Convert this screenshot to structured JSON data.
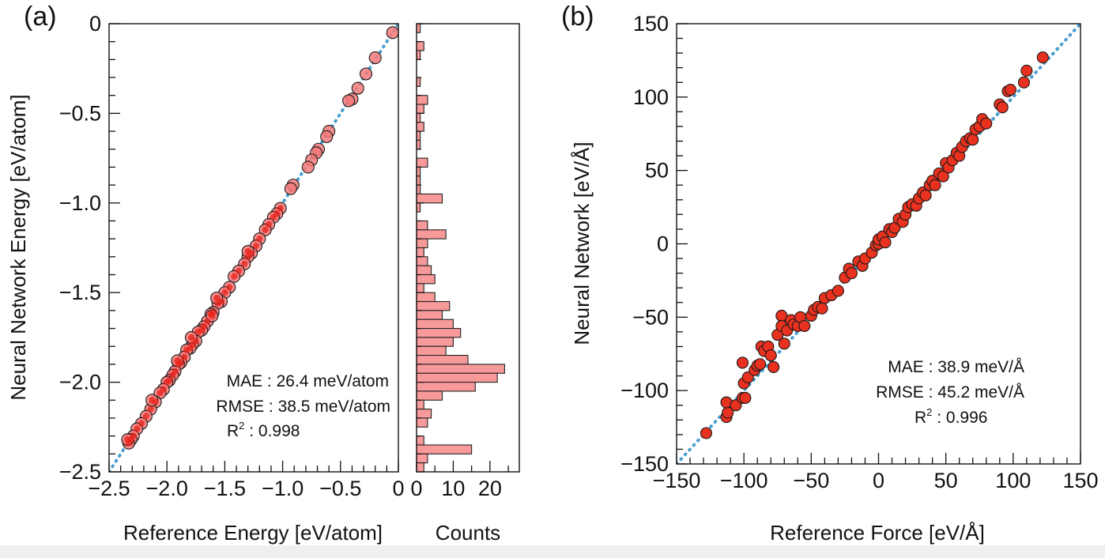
{
  "colors": {
    "marker_a": "#f47a7a",
    "marker_b": "#e8311f",
    "marker_core": "#e8221a",
    "hist_fill": "#f99a9a",
    "diagonal": "#4a9fd0",
    "axis": "#111111"
  },
  "chart_data": [
    {
      "type": "scatter",
      "panel": "(a)",
      "xlabel": "Reference Energy [eV/atom]",
      "ylabel": "Neural Network Energy [eV/atom]",
      "xlim": [
        -2.5,
        0
      ],
      "ylim": [
        -2.5,
        0
      ],
      "xticks": [
        -2.5,
        -2.0,
        -1.5,
        -1.0,
        -0.5,
        0
      ],
      "xtick_labels": [
        "−2.5",
        "−2.0",
        "−1.5",
        "−1.0",
        "−0.5",
        "0"
      ],
      "yticks": [
        0,
        -0.5,
        -1.0,
        -1.5,
        -2.0,
        -2.5
      ],
      "ytick_labels": [
        "0",
        "−0.5",
        "−1.0",
        "−1.5",
        "−2.0",
        "−2.5"
      ],
      "stats": {
        "mae": "MAE : 26.4 meV/atom",
        "rmse": "RMSE : 38.5 meV/atom",
        "r2_label": "R",
        "r2_sup": "2",
        "r2_value": " : 0.998"
      },
      "points": [
        [
          -0.05,
          -0.05
        ],
        [
          -0.2,
          -0.19
        ],
        [
          -0.28,
          -0.28
        ],
        [
          -0.35,
          -0.36
        ],
        [
          -0.4,
          -0.42
        ],
        [
          -0.43,
          -0.43
        ],
        [
          -0.6,
          -0.6
        ],
        [
          -0.62,
          -0.63
        ],
        [
          -0.69,
          -0.7
        ],
        [
          -0.71,
          -0.72
        ],
        [
          -0.75,
          -0.76
        ],
        [
          -0.78,
          -0.8
        ],
        [
          -0.91,
          -0.9
        ],
        [
          -0.93,
          -0.92
        ],
        [
          -1.02,
          -1.03
        ],
        [
          -1.05,
          -1.06
        ],
        [
          -1.08,
          -1.08
        ],
        [
          -1.12,
          -1.12
        ],
        [
          -1.15,
          -1.15
        ],
        [
          -1.2,
          -1.2
        ],
        [
          -1.23,
          -1.24
        ],
        [
          -1.27,
          -1.28
        ],
        [
          -1.3,
          -1.3
        ],
        [
          -1.33,
          -1.34
        ],
        [
          -1.38,
          -1.38
        ],
        [
          -1.42,
          -1.41
        ],
        [
          -1.46,
          -1.47
        ],
        [
          -1.5,
          -1.5
        ],
        [
          -1.53,
          -1.55
        ],
        [
          -1.56,
          -1.56
        ],
        [
          -1.6,
          -1.61
        ],
        [
          -1.62,
          -1.62
        ],
        [
          -1.65,
          -1.66
        ],
        [
          -1.68,
          -1.69
        ],
        [
          -1.7,
          -1.71
        ],
        [
          -1.73,
          -1.72
        ],
        [
          -1.75,
          -1.77
        ],
        [
          -1.78,
          -1.79
        ],
        [
          -1.8,
          -1.81
        ],
        [
          -1.83,
          -1.82
        ],
        [
          -1.85,
          -1.86
        ],
        [
          -1.88,
          -1.89
        ],
        [
          -1.9,
          -1.9
        ],
        [
          -1.93,
          -1.94
        ],
        [
          -1.95,
          -1.96
        ],
        [
          -1.98,
          -1.99
        ],
        [
          -2.0,
          -2.0
        ],
        [
          -2.03,
          -2.04
        ],
        [
          -2.06,
          -2.06
        ],
        [
          -2.1,
          -2.11
        ],
        [
          -2.14,
          -2.15
        ],
        [
          -2.18,
          -2.19
        ],
        [
          -2.22,
          -2.23
        ],
        [
          -2.26,
          -2.26
        ],
        [
          -2.29,
          -2.3
        ],
        [
          -2.31,
          -2.32
        ],
        [
          -2.33,
          -2.34
        ],
        [
          -2.34,
          -2.32
        ],
        [
          -1.57,
          -1.53
        ],
        [
          -1.3,
          -1.27
        ],
        [
          -1.79,
          -1.75
        ],
        [
          -1.61,
          -1.63
        ],
        [
          -2.13,
          -2.1
        ],
        [
          -1.91,
          -1.88
        ]
      ]
    },
    {
      "type": "bar",
      "orientation": "horizontal",
      "xlabel": "Counts",
      "xlim": [
        0,
        28
      ],
      "xticks": [
        0,
        10,
        20
      ],
      "xtick_labels": [
        "0",
        "10",
        "20"
      ],
      "ylim": [
        -2.5,
        0
      ],
      "bins": [
        [
          -0.05,
          1
        ],
        [
          -0.15,
          2
        ],
        [
          -0.2,
          1
        ],
        [
          -0.35,
          1
        ],
        [
          -0.45,
          3
        ],
        [
          -0.5,
          2
        ],
        [
          -0.55,
          1
        ],
        [
          -0.6,
          2
        ],
        [
          -0.65,
          1
        ],
        [
          -0.7,
          1
        ],
        [
          -0.8,
          3
        ],
        [
          -0.85,
          1
        ],
        [
          -0.9,
          1
        ],
        [
          -0.95,
          1
        ],
        [
          -1.0,
          7
        ],
        [
          -1.05,
          1
        ],
        [
          -1.15,
          3
        ],
        [
          -1.2,
          8
        ],
        [
          -1.25,
          3
        ],
        [
          -1.3,
          2
        ],
        [
          -1.35,
          3
        ],
        [
          -1.4,
          4
        ],
        [
          -1.45,
          5
        ],
        [
          -1.5,
          2
        ],
        [
          -1.55,
          5
        ],
        [
          -1.6,
          9
        ],
        [
          -1.65,
          7
        ],
        [
          -1.7,
          10
        ],
        [
          -1.75,
          12
        ],
        [
          -1.8,
          10
        ],
        [
          -1.85,
          8
        ],
        [
          -1.9,
          14
        ],
        [
          -1.95,
          24
        ],
        [
          -2.0,
          22
        ],
        [
          -2.05,
          16
        ],
        [
          -2.1,
          7
        ],
        [
          -2.15,
          2
        ],
        [
          -2.2,
          4
        ],
        [
          -2.25,
          3
        ],
        [
          -2.35,
          2
        ],
        [
          -2.4,
          15
        ],
        [
          -2.45,
          3
        ],
        [
          -2.5,
          2
        ]
      ]
    },
    {
      "type": "scatter",
      "panel": "(b)",
      "xlabel": "Reference Force [eV/Å]",
      "ylabel": "Neural Network [eV/Å]",
      "xlim": [
        -150,
        150
      ],
      "ylim": [
        -150,
        150
      ],
      "xticks": [
        -150,
        -100,
        -50,
        0,
        50,
        100,
        150
      ],
      "xtick_labels": [
        "−150",
        "−100",
        "−50",
        "0",
        "50",
        "100",
        "150"
      ],
      "yticks": [
        150,
        100,
        50,
        0,
        -50,
        -100,
        -150
      ],
      "ytick_labels": [
        "150",
        "100",
        "50",
        "0",
        "−50",
        "−100",
        "−150"
      ],
      "stats": {
        "mae": "MAE : 38.9 meV/Å",
        "rmse": "RMSE : 45.2 meV/Å",
        "r2_label": "R",
        "r2_sup": "2",
        "r2_value": " : 0.996"
      },
      "points": [
        [
          -128,
          -129
        ],
        [
          -113,
          -118
        ],
        [
          -112,
          -115
        ],
        [
          -113,
          -108
        ],
        [
          -106,
          -110
        ],
        [
          -101,
          -105
        ],
        [
          -99,
          -105
        ],
        [
          -100,
          -95
        ],
        [
          -101,
          -81
        ],
        [
          -97,
          -91
        ],
        [
          -92,
          -86
        ],
        [
          -90,
          -83
        ],
        [
          -88,
          -82
        ],
        [
          -87,
          -70
        ],
        [
          -85,
          -73
        ],
        [
          -82,
          -70
        ],
        [
          -80,
          -76
        ],
        [
          -78,
          -84
        ],
        [
          -75,
          -62
        ],
        [
          -72,
          -49
        ],
        [
          -72,
          -56
        ],
        [
          -70,
          -68
        ],
        [
          -68,
          -59
        ],
        [
          -65,
          -52
        ],
        [
          -63,
          -55
        ],
        [
          -60,
          -56
        ],
        [
          -58,
          -50
        ],
        [
          -55,
          -56
        ],
        [
          -50,
          -49
        ],
        [
          -48,
          -45
        ],
        [
          -45,
          -43
        ],
        [
          -42,
          -44
        ],
        [
          -40,
          -37
        ],
        [
          -35,
          -35
        ],
        [
          -30,
          -32
        ],
        [
          -25,
          -23
        ],
        [
          -22,
          -17
        ],
        [
          -20,
          -20
        ],
        [
          -15,
          -12
        ],
        [
          -12,
          -15
        ],
        [
          -10,
          -10
        ],
        [
          -5,
          -6
        ],
        [
          -2,
          -1
        ],
        [
          0,
          0
        ],
        [
          0,
          3
        ],
        [
          3,
          5
        ],
        [
          5,
          1
        ],
        [
          8,
          10
        ],
        [
          10,
          8
        ],
        [
          12,
          11
        ],
        [
          15,
          17
        ],
        [
          18,
          15
        ],
        [
          20,
          20
        ],
        [
          22,
          25
        ],
        [
          25,
          27
        ],
        [
          28,
          26
        ],
        [
          30,
          31
        ],
        [
          33,
          35
        ],
        [
          35,
          33
        ],
        [
          38,
          40
        ],
        [
          40,
          43
        ],
        [
          42,
          40
        ],
        [
          45,
          48
        ],
        [
          48,
          46
        ],
        [
          50,
          55
        ],
        [
          52,
          52
        ],
        [
          55,
          57
        ],
        [
          58,
          62
        ],
        [
          60,
          60
        ],
        [
          62,
          66
        ],
        [
          65,
          70
        ],
        [
          68,
          72
        ],
        [
          70,
          71
        ],
        [
          72,
          78
        ],
        [
          75,
          80
        ],
        [
          77,
          85
        ],
        [
          80,
          82
        ],
        [
          90,
          95
        ],
        [
          92,
          93
        ],
        [
          96,
          104
        ],
        [
          98,
          105
        ],
        [
          108,
          110
        ],
        [
          110,
          118
        ],
        [
          122,
          127
        ]
      ]
    }
  ]
}
